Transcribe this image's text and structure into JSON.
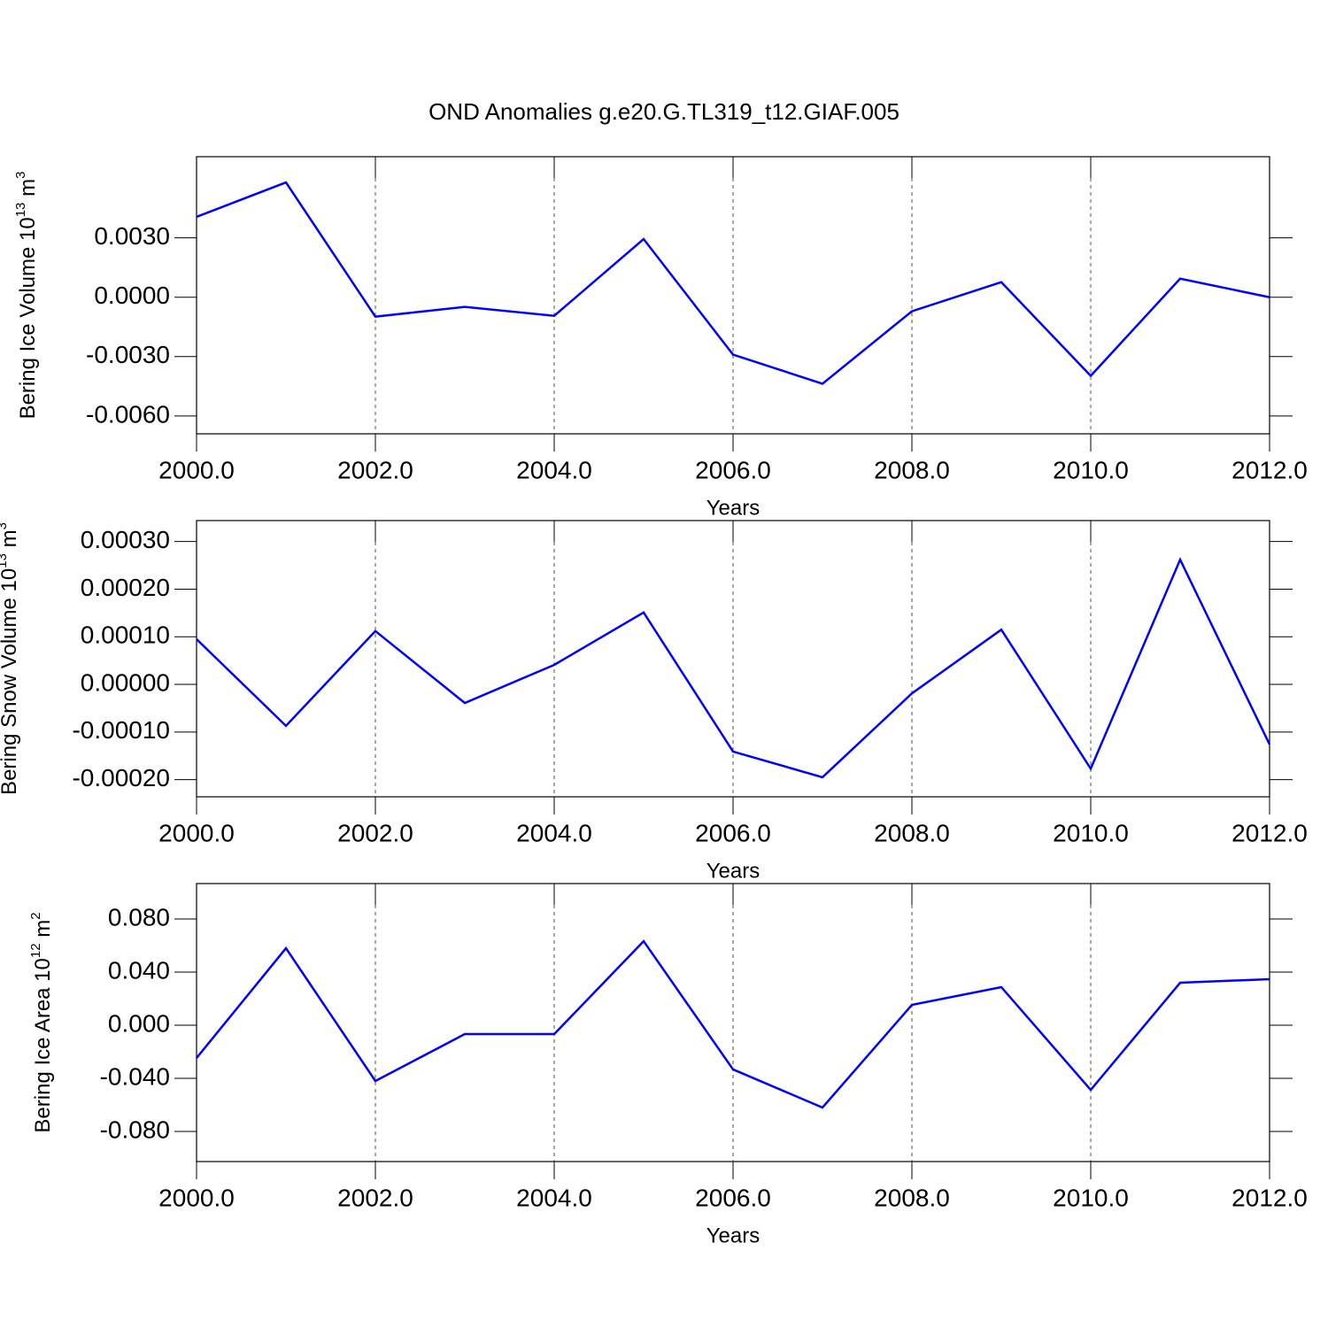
{
  "chart_data": [
    {
      "type": "line",
      "title": "OND Anomalies g.e20.G.TL319_t12.GIAF.005",
      "ylabel": [
        "Bering Ice Volume 10",
        "13",
        " m",
        "3"
      ],
      "xlabel": "Years",
      "x": [
        2000,
        2001,
        2002,
        2003,
        2004,
        2005,
        2006,
        2007,
        2008,
        2009,
        2010,
        2011,
        2012
      ],
      "series": [
        {
          "color": "#0000ff",
          "values": [
            0.00406,
            0.0058,
            -0.00098,
            -0.00049,
            -0.00094,
            0.00294,
            -0.0029,
            -0.00437,
            -0.00071,
            0.00076,
            -0.00397,
            0.00094,
            0.0
          ]
        }
      ],
      "xlim": [
        2000,
        2012
      ],
      "ylim": [
        -0.0069,
        0.0071
      ],
      "xticks": [
        {
          "value": 2000,
          "label": "2000.0"
        },
        {
          "value": 2002,
          "label": "2002.0"
        },
        {
          "value": 2004,
          "label": "2004.0"
        },
        {
          "value": 2006,
          "label": "2006.0"
        },
        {
          "value": 2008,
          "label": "2008.0"
        },
        {
          "value": 2010,
          "label": "2010.0"
        },
        {
          "value": 2012,
          "label": "2012.0"
        }
      ],
      "yticks": [
        {
          "value": -0.006,
          "label": "-0.0060"
        },
        {
          "value": -0.003,
          "label": "-0.0030"
        },
        {
          "value": 0,
          "label": "0.0000"
        },
        {
          "value": 0.003,
          "label": "0.0030"
        }
      ],
      "grid": "x"
    },
    {
      "type": "line",
      "ylabel": [
        "Bering Snow Volume 10",
        "13",
        " m",
        "3"
      ],
      "xlabel": "Years",
      "x": [
        2000,
        2001,
        2002,
        2003,
        2004,
        2005,
        2006,
        2007,
        2008,
        2009,
        2010,
        2011,
        2012
      ],
      "series": [
        {
          "color": "#0000ff",
          "values": [
            9.5e-05,
            -8.7e-05,
            0.000112,
            -3.9e-05,
            4.1e-05,
            0.000151,
            -0.000141,
            -0.000195,
            -1.9e-05,
            0.000115,
            -0.000177,
            0.000262,
            -0.000126
          ]
        }
      ],
      "xlim": [
        2000,
        2012
      ],
      "ylim": [
        -0.000236,
        0.000344
      ],
      "xticks": [
        {
          "value": 2000,
          "label": "2000.0"
        },
        {
          "value": 2002,
          "label": "2002.0"
        },
        {
          "value": 2004,
          "label": "2004.0"
        },
        {
          "value": 2006,
          "label": "2006.0"
        },
        {
          "value": 2008,
          "label": "2008.0"
        },
        {
          "value": 2010,
          "label": "2010.0"
        },
        {
          "value": 2012,
          "label": "2012.0"
        }
      ],
      "yticks": [
        {
          "value": -0.0002,
          "label": "-0.00020"
        },
        {
          "value": -0.0001,
          "label": "-0.00010"
        },
        {
          "value": 0,
          "label": "0.00000"
        },
        {
          "value": 0.0001,
          "label": "0.00010"
        },
        {
          "value": 0.0002,
          "label": "0.00020"
        },
        {
          "value": 0.0003,
          "label": "0.00030"
        }
      ],
      "grid": "x"
    },
    {
      "type": "line",
      "ylabel": [
        "Bering Ice Area 10",
        "12",
        " m",
        "2"
      ],
      "xlabel": "Years",
      "x": [
        2000,
        2001,
        2002,
        2003,
        2004,
        2005,
        2006,
        2007,
        2008,
        2009,
        2010,
        2011,
        2012
      ],
      "series": [
        {
          "color": "#0000ff",
          "values": [
            -0.0247,
            0.058,
            -0.042,
            -0.0067,
            -0.0067,
            0.0633,
            -0.0333,
            -0.062,
            0.0153,
            0.0287,
            -0.0487,
            0.032,
            0.0347
          ]
        }
      ],
      "xlim": [
        2000,
        2012
      ],
      "ylim": [
        -0.1027,
        0.1067
      ],
      "xticks": [
        {
          "value": 2000,
          "label": "2000.0"
        },
        {
          "value": 2002,
          "label": "2002.0"
        },
        {
          "value": 2004,
          "label": "2004.0"
        },
        {
          "value": 2006,
          "label": "2006.0"
        },
        {
          "value": 2008,
          "label": "2008.0"
        },
        {
          "value": 2010,
          "label": "2010.0"
        },
        {
          "value": 2012,
          "label": "2012.0"
        }
      ],
      "yticks": [
        {
          "value": -0.08,
          "label": "-0.080"
        },
        {
          "value": -0.04,
          "label": "-0.040"
        },
        {
          "value": 0,
          "label": "0.000"
        },
        {
          "value": 0.04,
          "label": "0.040"
        },
        {
          "value": 0.08,
          "label": "0.080"
        }
      ],
      "grid": "x"
    }
  ]
}
